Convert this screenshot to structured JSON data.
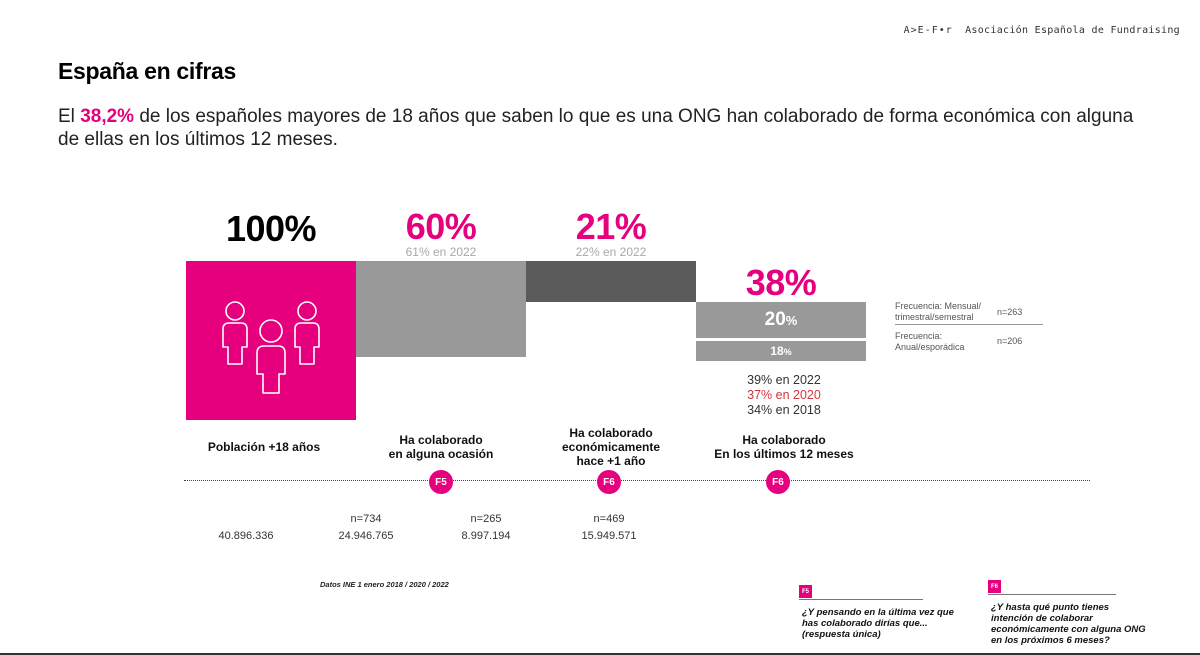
{
  "brand": {
    "logo": "A>E-F•r",
    "name": "Asociación Española de Fundraising"
  },
  "page_title": "España en cifras",
  "lead": {
    "prefix": "El ",
    "highlight": "38,2%",
    "suffix": " de los españoles mayores de 18 años que saben lo que es una ONG han colaborado de forma económica con alguna de ellas en los últimos 12 meses."
  },
  "colors": {
    "accent": "#e6007e",
    "grey": "#999999",
    "dark_grey": "#5b5b5b",
    "red": "#d0363a"
  },
  "stages": [
    {
      "big": "100%",
      "label": "Población +18 años",
      "icon": "people-icon",
      "value": 1.0
    },
    {
      "big": "60%",
      "sub": "61% en 2022",
      "label": "Ha colaborado\nen alguna ocasión",
      "badge": "F5",
      "value": 0.6
    },
    {
      "big": "21%",
      "sub": "22% en 2022",
      "label": "Ha colaborado\neconómicamente\nhace +1 año",
      "badge": "F6",
      "value": 0.21
    },
    {
      "big": "38%",
      "label": "Ha colaborado\nEn los últimos 12 meses",
      "badge": "F6",
      "value": 0.38
    }
  ],
  "split": {
    "top": {
      "value": "20",
      "unit": "%"
    },
    "bottom": {
      "value": "18",
      "unit": "%"
    }
  },
  "history": [
    "39% en 2022",
    "37% en 2020",
    "34% en 2018"
  ],
  "frequency": [
    {
      "label": "Frecuencia: Mensual/\ntrimestral/semestral",
      "n": "n=263"
    },
    {
      "label": "Frecuencia:\nAnual/esporádica",
      "n": "n=206"
    }
  ],
  "samples": [
    {
      "n": "",
      "total": "40.896.336"
    },
    {
      "n": "n=734",
      "total": "24.946.765"
    },
    {
      "n": "n=265",
      "total": "8.997.194"
    },
    {
      "n": "n=469",
      "total": "15.949.571"
    }
  ],
  "source": "Datos INE 1 enero 2018 / 2020 / 2022",
  "questions": [
    {
      "tag": "F5",
      "text": "¿Y pensando en la última vez que\nhas colaborado dirías que...\n(respuesta única)"
    },
    {
      "tag": "F6",
      "text": "¿Y hasta qué punto tienes\nintención de colaborar\neconómicamente con alguna ONG\nen los próximos 6 meses?"
    }
  ]
}
